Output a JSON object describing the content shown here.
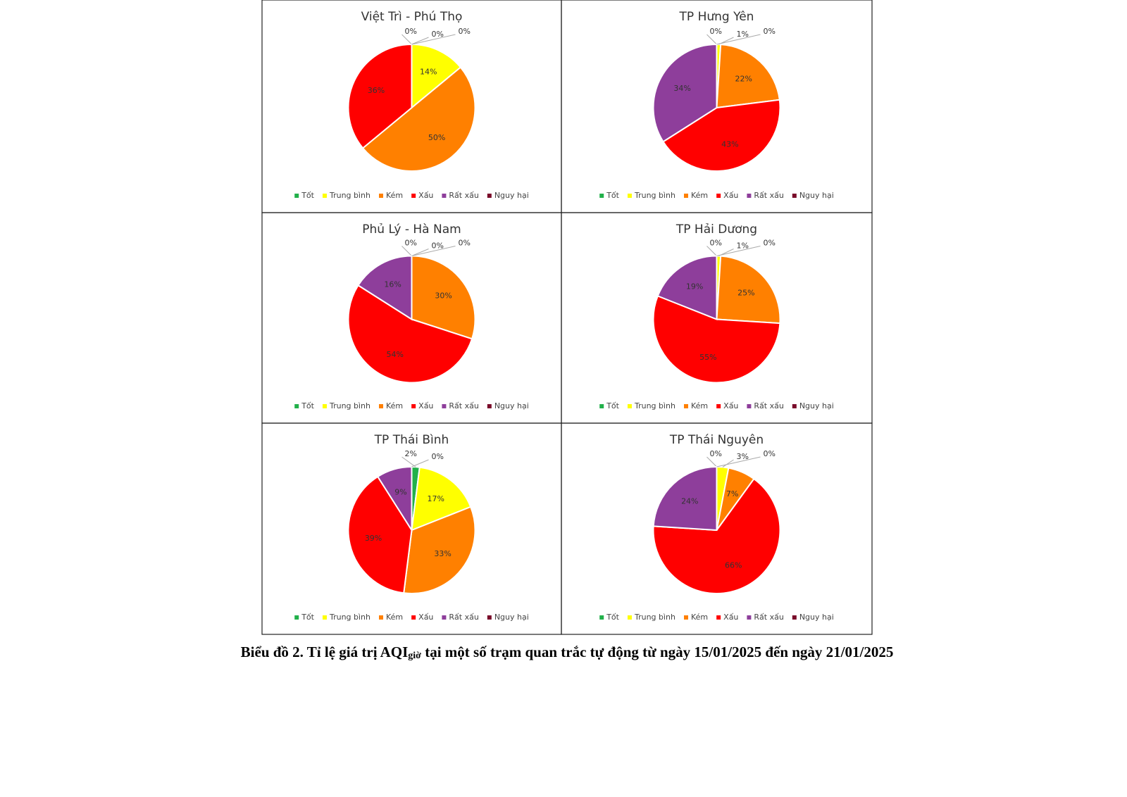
{
  "chart_data": [
    {
      "type": "pie",
      "title": "Việt Trì - Phú Thọ",
      "categories": [
        "Tốt",
        "Trung bình",
        "Kém",
        "Xấu",
        "Rất xấu",
        "Nguy hại"
      ],
      "values": [
        0,
        14,
        50,
        36,
        0,
        0
      ],
      "value_labels": [
        "0%",
        "14%",
        "50%",
        "36%",
        "0%",
        "0%"
      ],
      "colors": [
        "#22b04a",
        "#ffff00",
        "#ff8000",
        "#ff0000",
        "#8e3e9b",
        "#7a0b2a"
      ]
    },
    {
      "type": "pie",
      "title": "TP Hưng Yên",
      "categories": [
        "Tốt",
        "Trung bình",
        "Kém",
        "Xấu",
        "Rất xấu",
        "Nguy hại"
      ],
      "values": [
        0,
        1,
        22,
        43,
        34,
        0
      ],
      "value_labels": [
        "0%",
        "1%",
        "22%",
        "43%",
        "34%",
        "0%"
      ],
      "colors": [
        "#22b04a",
        "#ffff00",
        "#ff8000",
        "#ff0000",
        "#8e3e9b",
        "#7a0b2a"
      ]
    },
    {
      "type": "pie",
      "title": "Phủ Lý - Hà Nam",
      "categories": [
        "Tốt",
        "Trung bình",
        "Kém",
        "Xấu",
        "Rất xấu",
        "Nguy hại"
      ],
      "values": [
        0,
        0,
        30,
        54,
        16,
        0
      ],
      "value_labels": [
        "0%",
        "0%",
        "30%",
        "54%",
        "16%",
        "0%"
      ],
      "colors": [
        "#22b04a",
        "#ffff00",
        "#ff8000",
        "#ff0000",
        "#8e3e9b",
        "#7a0b2a"
      ]
    },
    {
      "type": "pie",
      "title": "TP Hải Dương",
      "categories": [
        "Tốt",
        "Trung bình",
        "Kém",
        "Xấu",
        "Rất xấu",
        "Nguy hại"
      ],
      "values": [
        0,
        1,
        25,
        55,
        19,
        0
      ],
      "value_labels": [
        "0%",
        "1%",
        "25%",
        "55%",
        "19%",
        "0%"
      ],
      "colors": [
        "#22b04a",
        "#ffff00",
        "#ff8000",
        "#ff0000",
        "#8e3e9b",
        "#7a0b2a"
      ]
    },
    {
      "type": "pie",
      "title": "TP Thái Bình",
      "categories": [
        "Tốt",
        "Trung bình",
        "Kém",
        "Xấu",
        "Rất xấu",
        "Nguy hại"
      ],
      "values": [
        2,
        17,
        33,
        39,
        9,
        0
      ],
      "value_labels": [
        "2%",
        "17%",
        "33%",
        "39%",
        "9%",
        "0%"
      ],
      "colors": [
        "#22b04a",
        "#ffff00",
        "#ff8000",
        "#ff0000",
        "#8e3e9b",
        "#7a0b2a"
      ]
    },
    {
      "type": "pie",
      "title": "TP Thái Nguyên",
      "categories": [
        "Tốt",
        "Trung bình",
        "Kém",
        "Xấu",
        "Rất xấu",
        "Nguy hại"
      ],
      "values": [
        0,
        3,
        7,
        66,
        24,
        0
      ],
      "value_labels": [
        "0%",
        "3%",
        "7%",
        "66%",
        "24%",
        "0%"
      ],
      "colors": [
        "#22b04a",
        "#ffff00",
        "#ff8000",
        "#ff0000",
        "#8e3e9b",
        "#7a0b2a"
      ]
    }
  ],
  "caption": {
    "prefix": "Biểu đồ 2.  Tỉ lệ giá trị AQI",
    "subscript": "giờ",
    "suffix": " tại một số trạm quan trắc tự động từ ngày 15/01/2025 đến ngày 21/01/2025"
  }
}
